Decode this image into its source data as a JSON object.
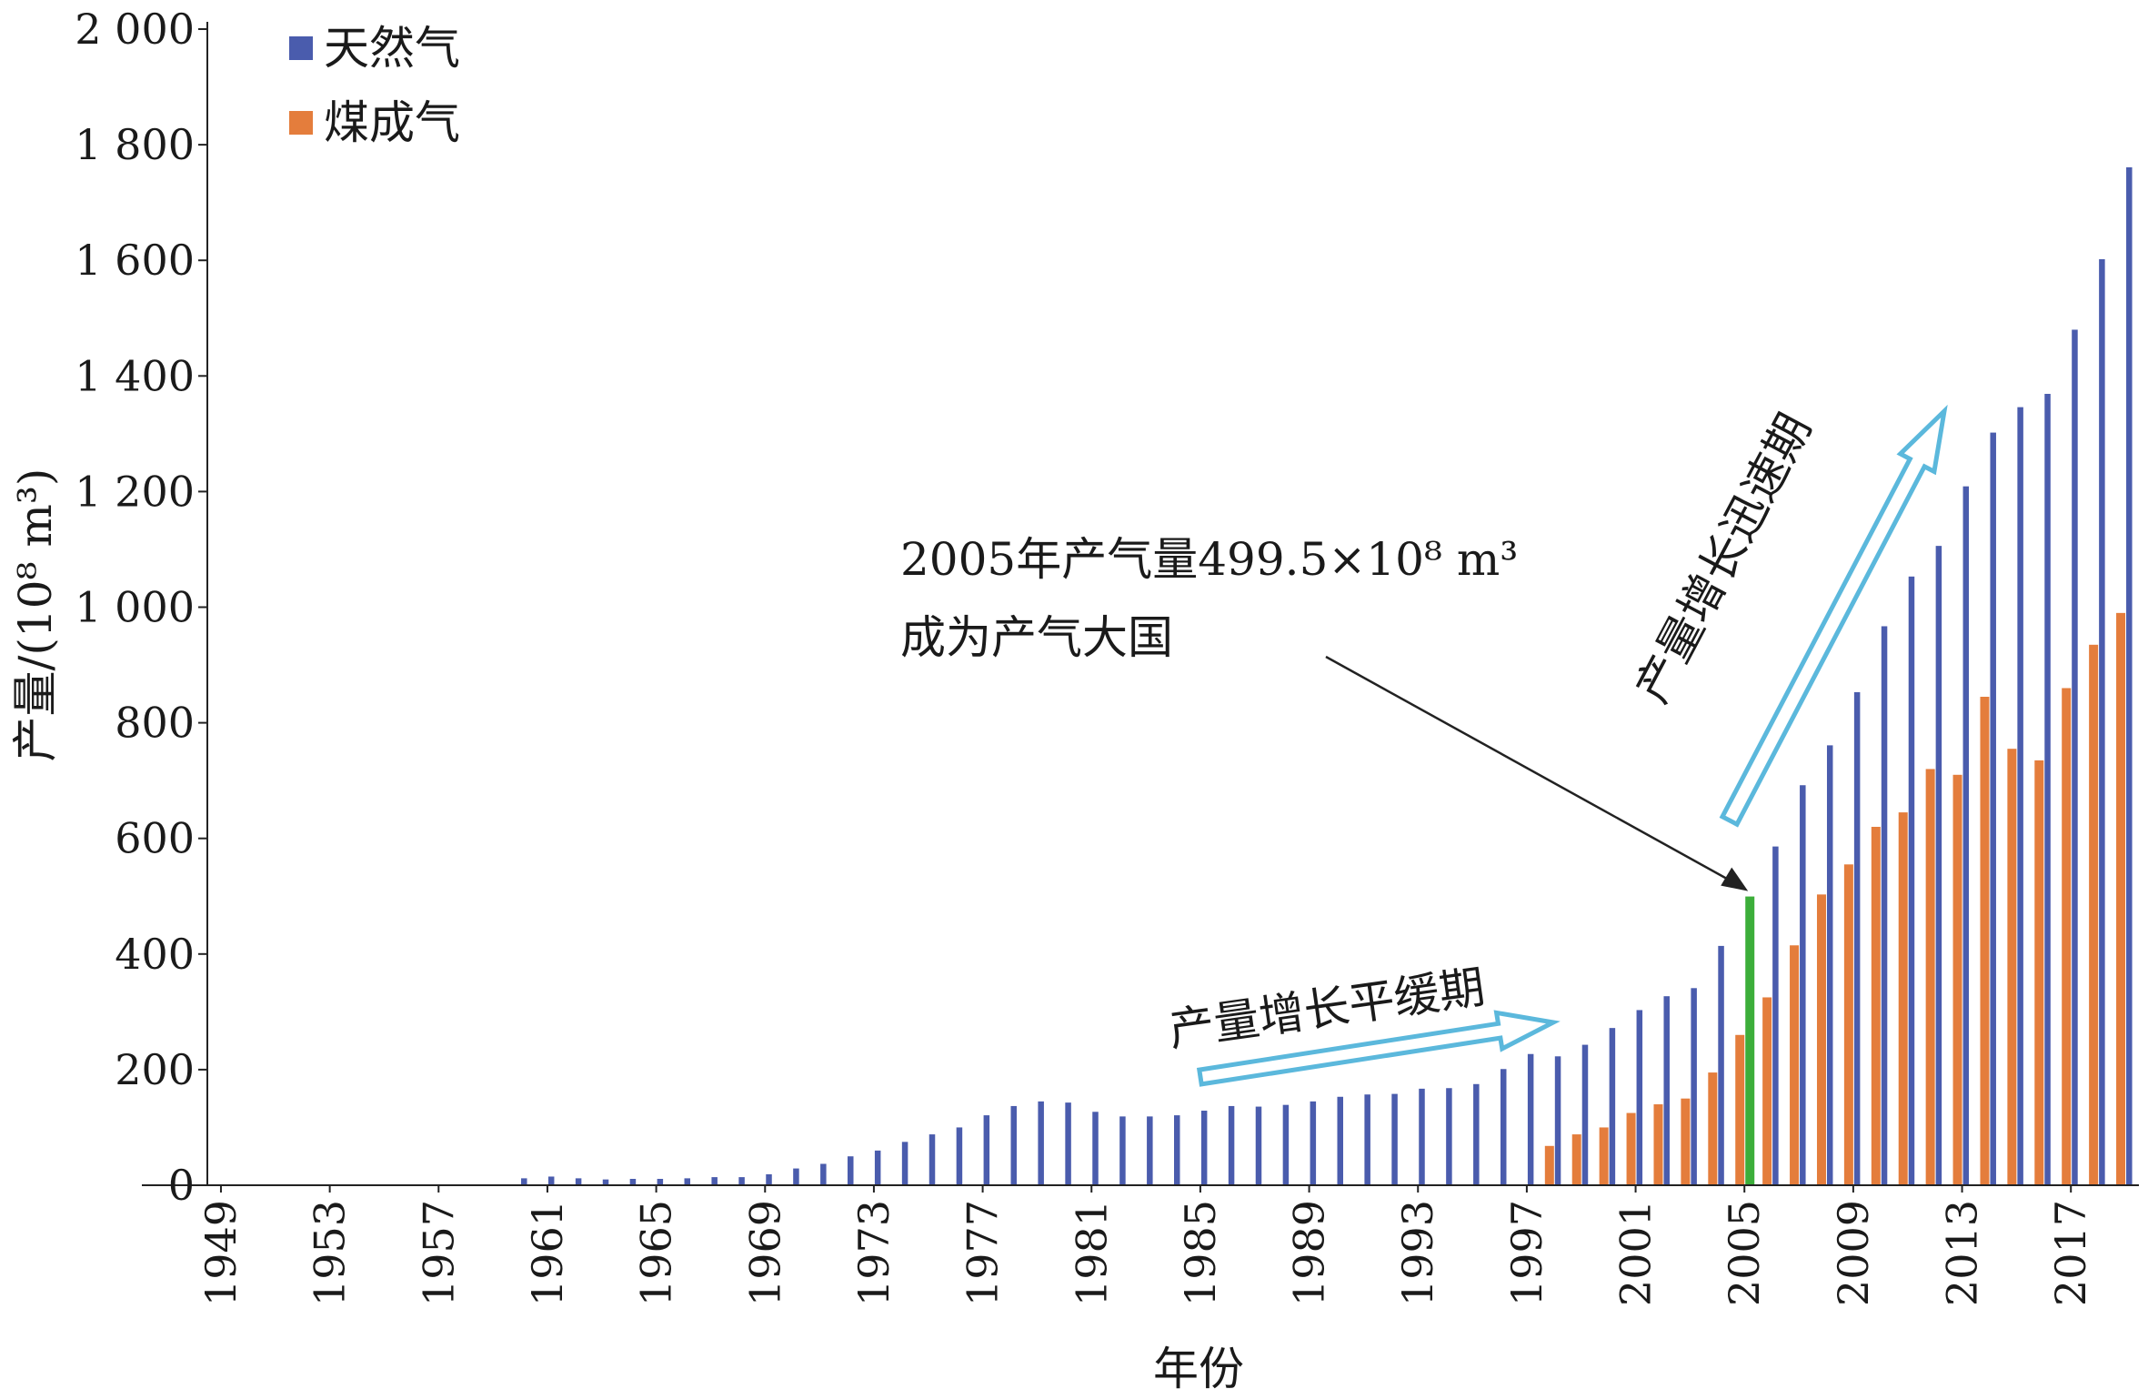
{
  "chart_data": {
    "type": "bar",
    "xlabel": "年份",
    "ylabel": "产量/(10⁸ m³)",
    "ylim": [
      0,
      2000
    ],
    "y_ticks": [
      0,
      200,
      400,
      600,
      800,
      1000,
      1200,
      1400,
      1600,
      1800,
      2000
    ],
    "y_tick_labels": [
      "0",
      "200",
      "400",
      "600",
      "800",
      "1 000",
      "1 200",
      "1 400",
      "1 600",
      "1 800",
      "2 000"
    ],
    "x_tick_labels": [
      "1949",
      "1953",
      "1957",
      "1961",
      "1965",
      "1969",
      "1973",
      "1977",
      "1981",
      "1985",
      "1989",
      "1993",
      "1997",
      "2001",
      "2005",
      "2009",
      "2013",
      "2017"
    ],
    "legend_position": "top-left",
    "categories": [
      "1949",
      "1950",
      "1951",
      "1952",
      "1953",
      "1954",
      "1955",
      "1956",
      "1957",
      "1958",
      "1959",
      "1960",
      "1961",
      "1962",
      "1963",
      "1964",
      "1965",
      "1966",
      "1967",
      "1968",
      "1969",
      "1970",
      "1971",
      "1972",
      "1973",
      "1974",
      "1975",
      "1976",
      "1977",
      "1978",
      "1979",
      "1980",
      "1981",
      "1982",
      "1983",
      "1984",
      "1985",
      "1986",
      "1987",
      "1988",
      "1989",
      "1990",
      "1991",
      "1992",
      "1993",
      "1994",
      "1995",
      "1996",
      "1997",
      "1998",
      "1999",
      "2000",
      "2001",
      "2002",
      "2003",
      "2004",
      "2005",
      "2006",
      "2007",
      "2008",
      "2009",
      "2010",
      "2011",
      "2012",
      "2013",
      "2014",
      "2015",
      "2016",
      "2017",
      "2018",
      "2019"
    ],
    "highlight_category": "2005",
    "series": [
      {
        "name": "天然气",
        "color": "#4a5cad",
        "highlight_color": "#3cae3a",
        "values": [
          1,
          1,
          1,
          1,
          1,
          1,
          1,
          1,
          1,
          1,
          1,
          12,
          15,
          12,
          10,
          11,
          11,
          12,
          14,
          14,
          19,
          29,
          37,
          50,
          60,
          75,
          88,
          100,
          121,
          137,
          145,
          143,
          127,
          119,
          119,
          121,
          129,
          137,
          136,
          139,
          145,
          153,
          157,
          158,
          167,
          168,
          175,
          201,
          227,
          223,
          243,
          272,
          303,
          327,
          341,
          414,
          499.5,
          586,
          692,
          761,
          853,
          967,
          1053,
          1106,
          1209,
          1302,
          1346,
          1369,
          1480,
          1602,
          1761
        ]
      },
      {
        "name": "煤成气",
        "color": "#e47d3c",
        "values": [
          null,
          null,
          null,
          null,
          null,
          null,
          null,
          null,
          null,
          null,
          null,
          null,
          null,
          null,
          null,
          null,
          null,
          null,
          null,
          null,
          null,
          null,
          null,
          null,
          null,
          null,
          null,
          null,
          null,
          null,
          null,
          null,
          null,
          null,
          null,
          null,
          null,
          null,
          null,
          null,
          null,
          null,
          null,
          null,
          null,
          null,
          null,
          null,
          null,
          68,
          88,
          100,
          125,
          140,
          150,
          195,
          260,
          325,
          415,
          503,
          555,
          620,
          645,
          720,
          710,
          845,
          755,
          735,
          860,
          935,
          990
        ]
      }
    ],
    "annotations": [
      {
        "id": "milestone",
        "lines": [
          "2005年产气量499.5×10⁸ m³",
          "成为产气大国"
        ]
      },
      {
        "id": "slow",
        "text": "产量增长平缓期"
      },
      {
        "id": "fast",
        "text": "产量增长迅速期"
      }
    ]
  }
}
